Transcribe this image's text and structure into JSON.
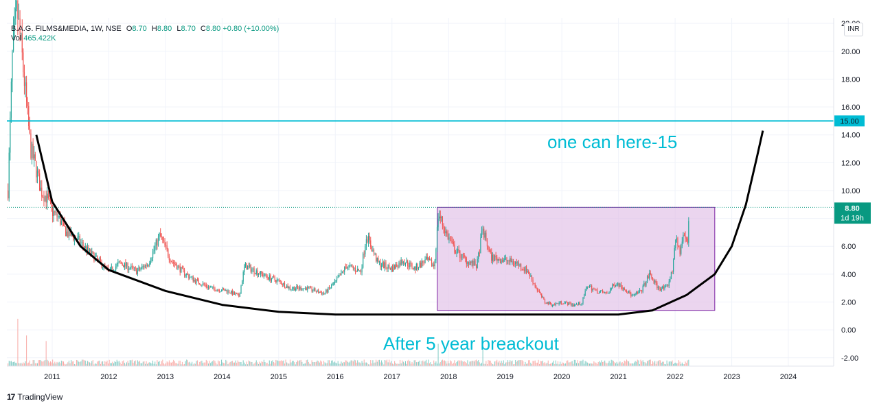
{
  "legend": {
    "symbol": "B.A.G. FILMS&MEDIA, 1W, NSE",
    "o_label": "O",
    "o": "8.70",
    "h_label": "H",
    "h": "8.80",
    "l_label": "L",
    "l": "8.70",
    "c_label": "C",
    "c": "8.80",
    "change": "+0.80 (+10.00%)",
    "vol_label": "Vol",
    "vol": "465.422K"
  },
  "currency_button": "INR",
  "brand": {
    "logo": "17",
    "name": "TradingView"
  },
  "colors": {
    "up": "#26a69a",
    "down": "#ef5350",
    "hline": "#00bcd4",
    "box_fill": "#e1bee7",
    "box_stroke": "#7b1fa2",
    "curve": "#000000",
    "last_price": "#089981",
    "annotation": "#00bcd4"
  },
  "chart_data": {
    "type": "candlestick",
    "interval": "1W",
    "y_ticks": [
      "22.00",
      "20.00",
      "18.00",
      "16.00",
      "14.00",
      "12.00",
      "10.00",
      "8.00",
      "6.00",
      "4.00",
      "2.00",
      "0.00",
      "-2.00"
    ],
    "ylim": [
      -2.6,
      22.4
    ],
    "x_ticks": [
      "2011",
      "2012",
      "2013",
      "2014",
      "2015",
      "2016",
      "2017",
      "2018",
      "2019",
      "2020",
      "2021",
      "2022",
      "2023",
      "2024"
    ],
    "xlim": [
      2010.2,
      2024.8
    ],
    "horizontal_line": {
      "value": 15.0,
      "label": "15.00"
    },
    "last_price": {
      "value": 8.8,
      "label": "8.80",
      "countdown": "1d 19h"
    },
    "price_path": [
      [
        2010.22,
        10
      ],
      [
        2010.3,
        20
      ],
      [
        2010.38,
        23
      ],
      [
        2010.46,
        20
      ],
      [
        2010.55,
        16
      ],
      [
        2010.62,
        13
      ],
      [
        2010.72,
        11.5
      ],
      [
        2010.8,
        10
      ],
      [
        2010.9,
        9.5
      ],
      [
        2011.0,
        8.5
      ],
      [
        2011.12,
        8.0
      ],
      [
        2011.25,
        7.0
      ],
      [
        2011.45,
        6.5
      ],
      [
        2011.6,
        5.8
      ],
      [
        2011.8,
        5.0
      ],
      [
        2012.0,
        4.2
      ],
      [
        2012.2,
        4.8
      ],
      [
        2012.5,
        4.2
      ],
      [
        2012.7,
        4.8
      ],
      [
        2012.9,
        6.8
      ],
      [
        2013.1,
        5.0
      ],
      [
        2013.3,
        4.2
      ],
      [
        2013.5,
        3.6
      ],
      [
        2013.8,
        3.0
      ],
      [
        2014.1,
        2.8
      ],
      [
        2014.3,
        2.4
      ],
      [
        2014.4,
        4.6
      ],
      [
        2014.6,
        4.2
      ],
      [
        2014.8,
        3.8
      ],
      [
        2015.0,
        3.5
      ],
      [
        2015.2,
        3.0
      ],
      [
        2015.5,
        3.0
      ],
      [
        2015.8,
        2.6
      ],
      [
        2016.0,
        3.4
      ],
      [
        2016.2,
        4.6
      ],
      [
        2016.45,
        4.2
      ],
      [
        2016.55,
        6.8
      ],
      [
        2016.75,
        4.8
      ],
      [
        2017.0,
        4.4
      ],
      [
        2017.2,
        5.0
      ],
      [
        2017.4,
        4.4
      ],
      [
        2017.6,
        5.0
      ],
      [
        2017.75,
        4.6
      ],
      [
        2017.82,
        8.4
      ],
      [
        2017.95,
        7.0
      ],
      [
        2018.1,
        5.8
      ],
      [
        2018.3,
        5.0
      ],
      [
        2018.5,
        4.6
      ],
      [
        2018.6,
        7.2
      ],
      [
        2018.75,
        5.2
      ],
      [
        2019.0,
        5.0
      ],
      [
        2019.2,
        4.8
      ],
      [
        2019.4,
        4.2
      ],
      [
        2019.55,
        3.0
      ],
      [
        2019.7,
        2.0
      ],
      [
        2019.85,
        1.8
      ],
      [
        2020.0,
        2.0
      ],
      [
        2020.2,
        1.8
      ],
      [
        2020.35,
        1.9
      ],
      [
        2020.45,
        3.2
      ],
      [
        2020.6,
        2.8
      ],
      [
        2020.8,
        2.6
      ],
      [
        2020.95,
        3.4
      ],
      [
        2021.1,
        3.0
      ],
      [
        2021.25,
        2.4
      ],
      [
        2021.4,
        2.8
      ],
      [
        2021.55,
        4.0
      ],
      [
        2021.7,
        3.0
      ],
      [
        2021.85,
        3.0
      ],
      [
        2021.95,
        4.2
      ],
      [
        2022.0,
        6.6
      ],
      [
        2022.08,
        5.6
      ],
      [
        2022.15,
        6.8
      ],
      [
        2022.22,
        6.2
      ],
      [
        2022.25,
        8.8
      ]
    ],
    "volume_spikes": [
      [
        2010.4,
        3.4
      ],
      [
        2010.55,
        2.2
      ],
      [
        2010.9,
        1.8
      ],
      [
        2017.82,
        1.6
      ],
      [
        2018.6,
        1.4
      ]
    ],
    "consolidation_box": {
      "x0": 2017.8,
      "x1": 2022.7,
      "y0": 1.4,
      "y1": 8.8
    },
    "annotations": [
      "one can here-15",
      "After 5 year breackout"
    ]
  }
}
